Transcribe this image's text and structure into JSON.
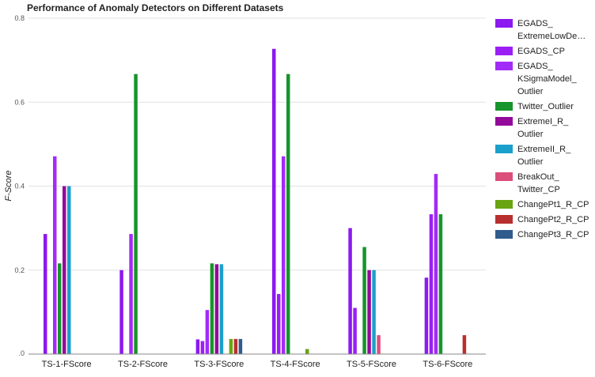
{
  "chart_data": {
    "type": "bar",
    "title": "Performance of Anomaly Detectors on Different Datasets",
    "xlabel": "",
    "ylabel": "F-Score",
    "ylim": [
      0,
      0.8
    ],
    "yticks": [
      "0",
      "0.2",
      "0.4",
      "0.6",
      "0.8"
    ],
    "ytick_labels": [
      ".0",
      "0.2",
      "0.4",
      "0.6",
      "0.8"
    ],
    "grid": true,
    "legend_position": "right",
    "categories": [
      "TS-1-FScore",
      "TS-2-FScore",
      "TS-3-FScore",
      "TS-4-FScore",
      "TS-5-FScore",
      "TS-6-FScore"
    ],
    "series": [
      {
        "name": "EGADS_ExtremeLowDensityModel",
        "legend_lines": [
          "EGADS_",
          "ExtremeLowDe…"
        ],
        "color": "#8b19f0",
        "values": [
          0.286,
          0.2,
          0.035,
          0.727,
          0.3,
          0.182
        ]
      },
      {
        "name": "EGADS_CP",
        "legend_lines": [
          "EGADS_CP"
        ],
        "color": "#9b1ff5",
        "values": [
          0,
          0,
          0.031,
          0.143,
          0.11,
          0.333
        ]
      },
      {
        "name": "EGADS_KSigmaModel_Outlier",
        "legend_lines": [
          "EGADS_",
          "KSigmaModel_",
          "Outlier"
        ],
        "color": "#a32bf7",
        "values": [
          0.471,
          0.286,
          0.105,
          0.471,
          0,
          0.429
        ]
      },
      {
        "name": "Twitter_Outlier",
        "legend_lines": [
          "Twitter_Outlier"
        ],
        "color": "#17942b",
        "values": [
          0.216,
          0.667,
          0.216,
          0.667,
          0.255,
          0.333
        ]
      },
      {
        "name": "ExtremeI_R_Outlier",
        "legend_lines": [
          "ExtremeI_R_",
          "Outlier"
        ],
        "color": "#930a9b",
        "values": [
          0.4,
          0,
          0.214,
          0,
          0.2,
          0
        ]
      },
      {
        "name": "ExtremeII_R_Outlier",
        "legend_lines": [
          "ExtremeII_R_",
          "Outlier"
        ],
        "color": "#1ba0cc",
        "values": [
          0.4,
          0,
          0.214,
          0,
          0.2,
          0
        ]
      },
      {
        "name": "BreakOut_Twitter_CP",
        "legend_lines": [
          "BreakOut_",
          "Twitter_CP"
        ],
        "color": "#db4f7c",
        "values": [
          0,
          0,
          0,
          0,
          0.045,
          0
        ]
      },
      {
        "name": "ChangePt1_R_CP",
        "legend_lines": [
          "ChangePt1_R_CP"
        ],
        "color": "#6aa412",
        "values": [
          0,
          0,
          0.036,
          0.012,
          0,
          0
        ]
      },
      {
        "name": "ChangePt2_R_CP",
        "legend_lines": [
          "ChangePt2_R_CP"
        ],
        "color": "#b82f2f",
        "values": [
          0,
          0,
          0.036,
          0,
          0,
          0.045
        ]
      },
      {
        "name": "ChangePt3_R_CP",
        "legend_lines": [
          "ChangePt3_R_CP"
        ],
        "color": "#2f5c8c",
        "values": [
          0,
          0,
          0.036,
          0,
          0,
          0
        ]
      }
    ]
  }
}
